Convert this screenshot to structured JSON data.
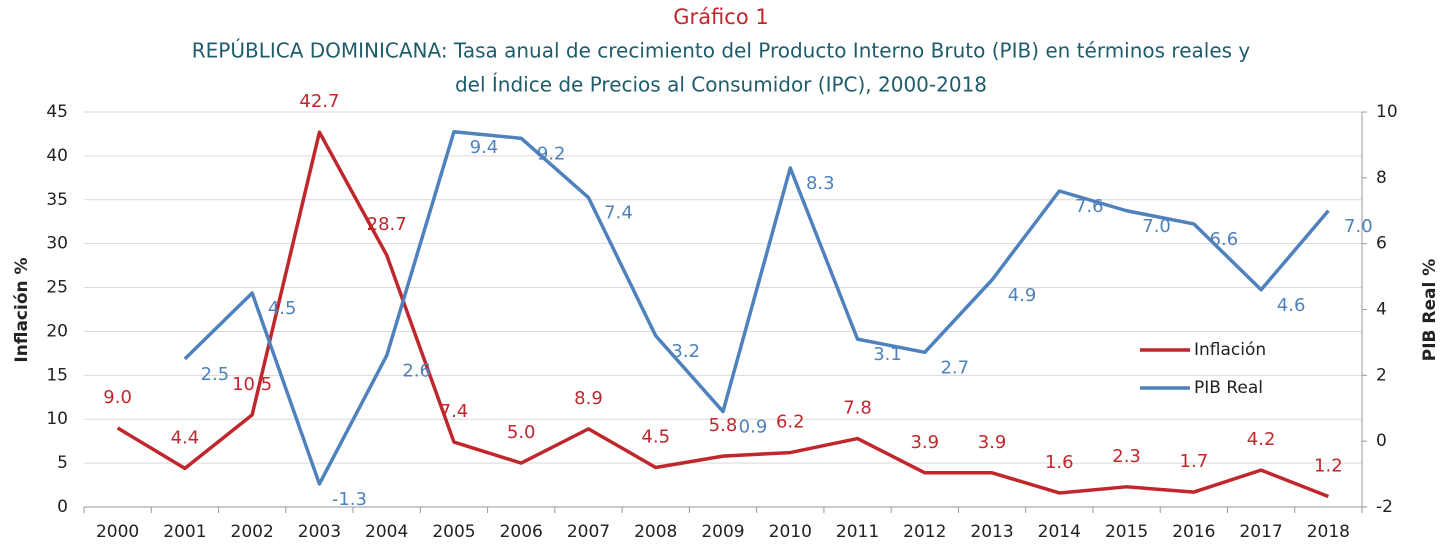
{
  "chart_data": {
    "type": "line",
    "title": "Gráfico 1",
    "subtitle": [
      "REPÚBLICA DOMINICANA: Tasa anual de crecimiento del Producto Interno Bruto (PIB) en términos reales y",
      "del Índice de Precios al Consumidor (IPC), 2000-2018"
    ],
    "y_label": "Inflación %",
    "y2_label": "PIB Real %",
    "categories": [
      "2000",
      "2001",
      "2002",
      "2003",
      "2004",
      "2005",
      "2006",
      "2007",
      "2008",
      "2009",
      "2010",
      "2011",
      "2012",
      "2013",
      "2014",
      "2015",
      "2016",
      "2017",
      "2018"
    ],
    "series": [
      {
        "name": "Inflación",
        "color": "#c0272d",
        "values": [
          9.0,
          4.4,
          10.5,
          42.7,
          28.7,
          7.4,
          5.0,
          8.9,
          4.5,
          5.8,
          6.2,
          7.8,
          3.9,
          3.9,
          1.6,
          2.3,
          1.7,
          4.2,
          1.2
        ],
        "value_labels": [
          "9.0",
          "4.4",
          "10.5",
          "42.7",
          "28.7",
          "7.4",
          "5.0",
          "8.9",
          "4.5",
          "5.8",
          "6.2",
          "7.8",
          "3.9",
          "3.9",
          "1.6",
          "2.3",
          "1.7",
          "4.2",
          "1.2"
        ]
      },
      {
        "name": "PIB Real",
        "color": "#4f81bd",
        "axis": "y2",
        "values": [
          null,
          2.5,
          4.5,
          -1.3,
          2.6,
          9.4,
          9.2,
          7.4,
          3.2,
          0.9,
          8.3,
          3.1,
          2.7,
          4.9,
          7.6,
          7.0,
          6.6,
          4.6,
          7.0
        ],
        "value_labels": [
          null,
          "2.5",
          "4.5",
          "-1.3",
          "2.6",
          "9.4",
          "9.2",
          "7.4",
          "3.2",
          "0.9",
          "8.3",
          "3.1",
          "2.7",
          "4.9",
          "7.6",
          "7.0",
          "6.6",
          "4.6",
          "7.0"
        ]
      }
    ],
    "ylim": [
      0,
      45
    ],
    "yticks": [
      0,
      5,
      10,
      15,
      20,
      25,
      30,
      35,
      40,
      45
    ],
    "y2lim": [
      -2,
      10
    ],
    "y2ticks": [
      -2,
      0,
      2,
      4,
      6,
      8,
      10
    ],
    "grid": true
  }
}
